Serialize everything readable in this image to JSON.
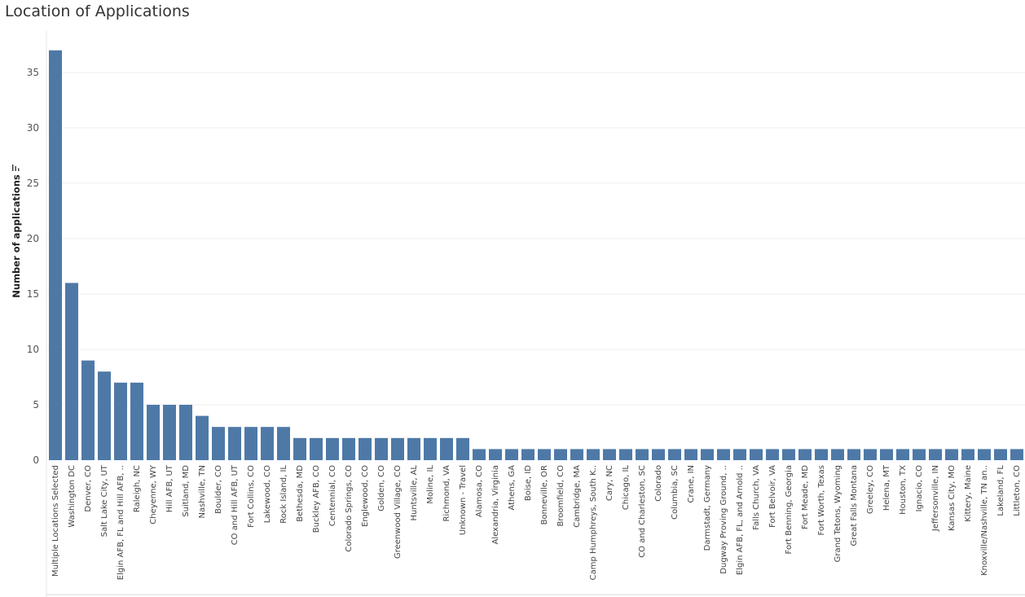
{
  "header": {
    "title": "Location of Applications"
  },
  "chart_data": {
    "type": "bar",
    "title": "Location of Applications",
    "xlabel": "",
    "ylabel": "Number of applications",
    "ylabel_icon": "sort-icon",
    "ylim": [
      0,
      38
    ],
    "yticks": [
      0,
      5,
      10,
      15,
      20,
      25,
      30,
      35
    ],
    "grid": true,
    "bar_color": "#4e79a7",
    "categories": [
      "Multiple Locations Selected",
      "Washington DC",
      "Denver, CO",
      "Salt Lake City, UT",
      "Elgin AFB, FL and Hill AFB, ..",
      "Raleigh, NC",
      "Cheyenne, WY",
      "Hill AFB, UT",
      "Suitland, MD",
      "Nashville, TN",
      "Boulder, CO",
      "CO and Hill AFB, UT",
      "Fort Collins, CO",
      "Lakewood, CO",
      "Rock Island, IL",
      "Bethesda, MD",
      "Buckley AFB, CO",
      "Centennial, CO",
      "Colorado Springs, CO",
      "Englewood, CO",
      "Golden, CO",
      "Greenwood Village, CO",
      "Huntsville, AL",
      "Moline, IL",
      "Richmond, VA",
      "Unknown - Travel",
      "Alamosa, CO",
      "Alexandria, Virginia",
      "Athens, GA",
      "Boise, ID",
      "Bonneville, OR",
      "Broomfield, CO",
      "Cambridge, MA",
      "Camp Humphreys, South K..",
      "Cary, NC",
      "Chicago, IL",
      "CO and Charleston, SC",
      "Colorado",
      "Columbia, SC",
      "Crane, IN",
      "Darmstadt, Germany",
      "Dugway Proving Ground, ..",
      "Elgin AFB, FL, and Arnold ..",
      "Falls Church, VA",
      "Fort Belvoir, VA",
      "Fort Benning, Georgia",
      "Fort Meade, MD",
      "Fort Worth, Texas",
      "Grand Tetons, Wyoming",
      "Great Falls Montana",
      "Greeley, CO",
      "Helena, MT",
      "Houston, TX",
      "Ignacio, CO",
      "Jeffersonville, IN",
      "Kansas City, MO",
      "Kittery, Maine",
      "Knoxville/Nashville, TN an..",
      "Lakeland, FL",
      "Littleton, CO"
    ],
    "values": [
      37,
      16,
      9,
      8,
      7,
      7,
      5,
      5,
      5,
      4,
      3,
      3,
      3,
      3,
      3,
      2,
      2,
      2,
      2,
      2,
      2,
      2,
      2,
      2,
      2,
      2,
      1,
      1,
      1,
      1,
      1,
      1,
      1,
      1,
      1,
      1,
      1,
      1,
      1,
      1,
      1,
      1,
      1,
      1,
      1,
      1,
      1,
      1,
      1,
      1,
      1,
      1,
      1,
      1,
      1,
      1,
      1,
      1,
      1,
      1
    ]
  }
}
